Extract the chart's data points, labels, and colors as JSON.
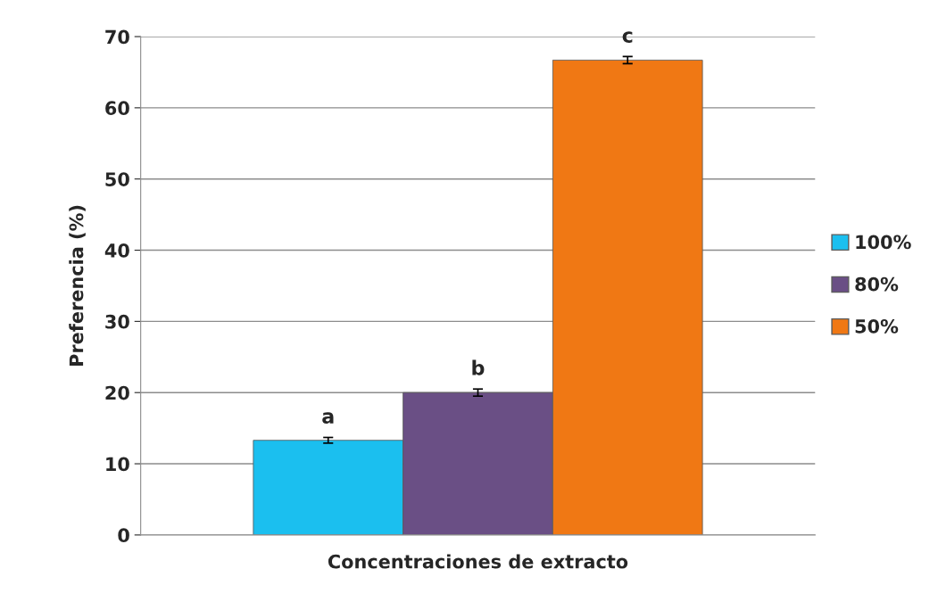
{
  "chart_data": {
    "type": "bar",
    "categories": [
      null
    ],
    "xlabel": "Concentraciones de extracto",
    "ylabel": "Preferencia (%)",
    "series": [
      {
        "name": "100%",
        "color": "#1bbfef",
        "values": [
          13.3
        ],
        "errors": [
          0.4
        ]
      },
      {
        "name": "80%",
        "color": "#6a4f85",
        "values": [
          20.0
        ],
        "errors": [
          0.5
        ]
      },
      {
        "name": "50%",
        "color": "#f07814",
        "values": [
          66.7
        ],
        "errors": [
          0.5
        ]
      }
    ],
    "annotations": [
      "a",
      "b",
      "c"
    ],
    "ylim": [
      0,
      70
    ],
    "yticks": [
      0,
      10,
      20,
      30,
      40,
      50,
      60,
      70
    ],
    "grid": "y",
    "legend": "right"
  }
}
